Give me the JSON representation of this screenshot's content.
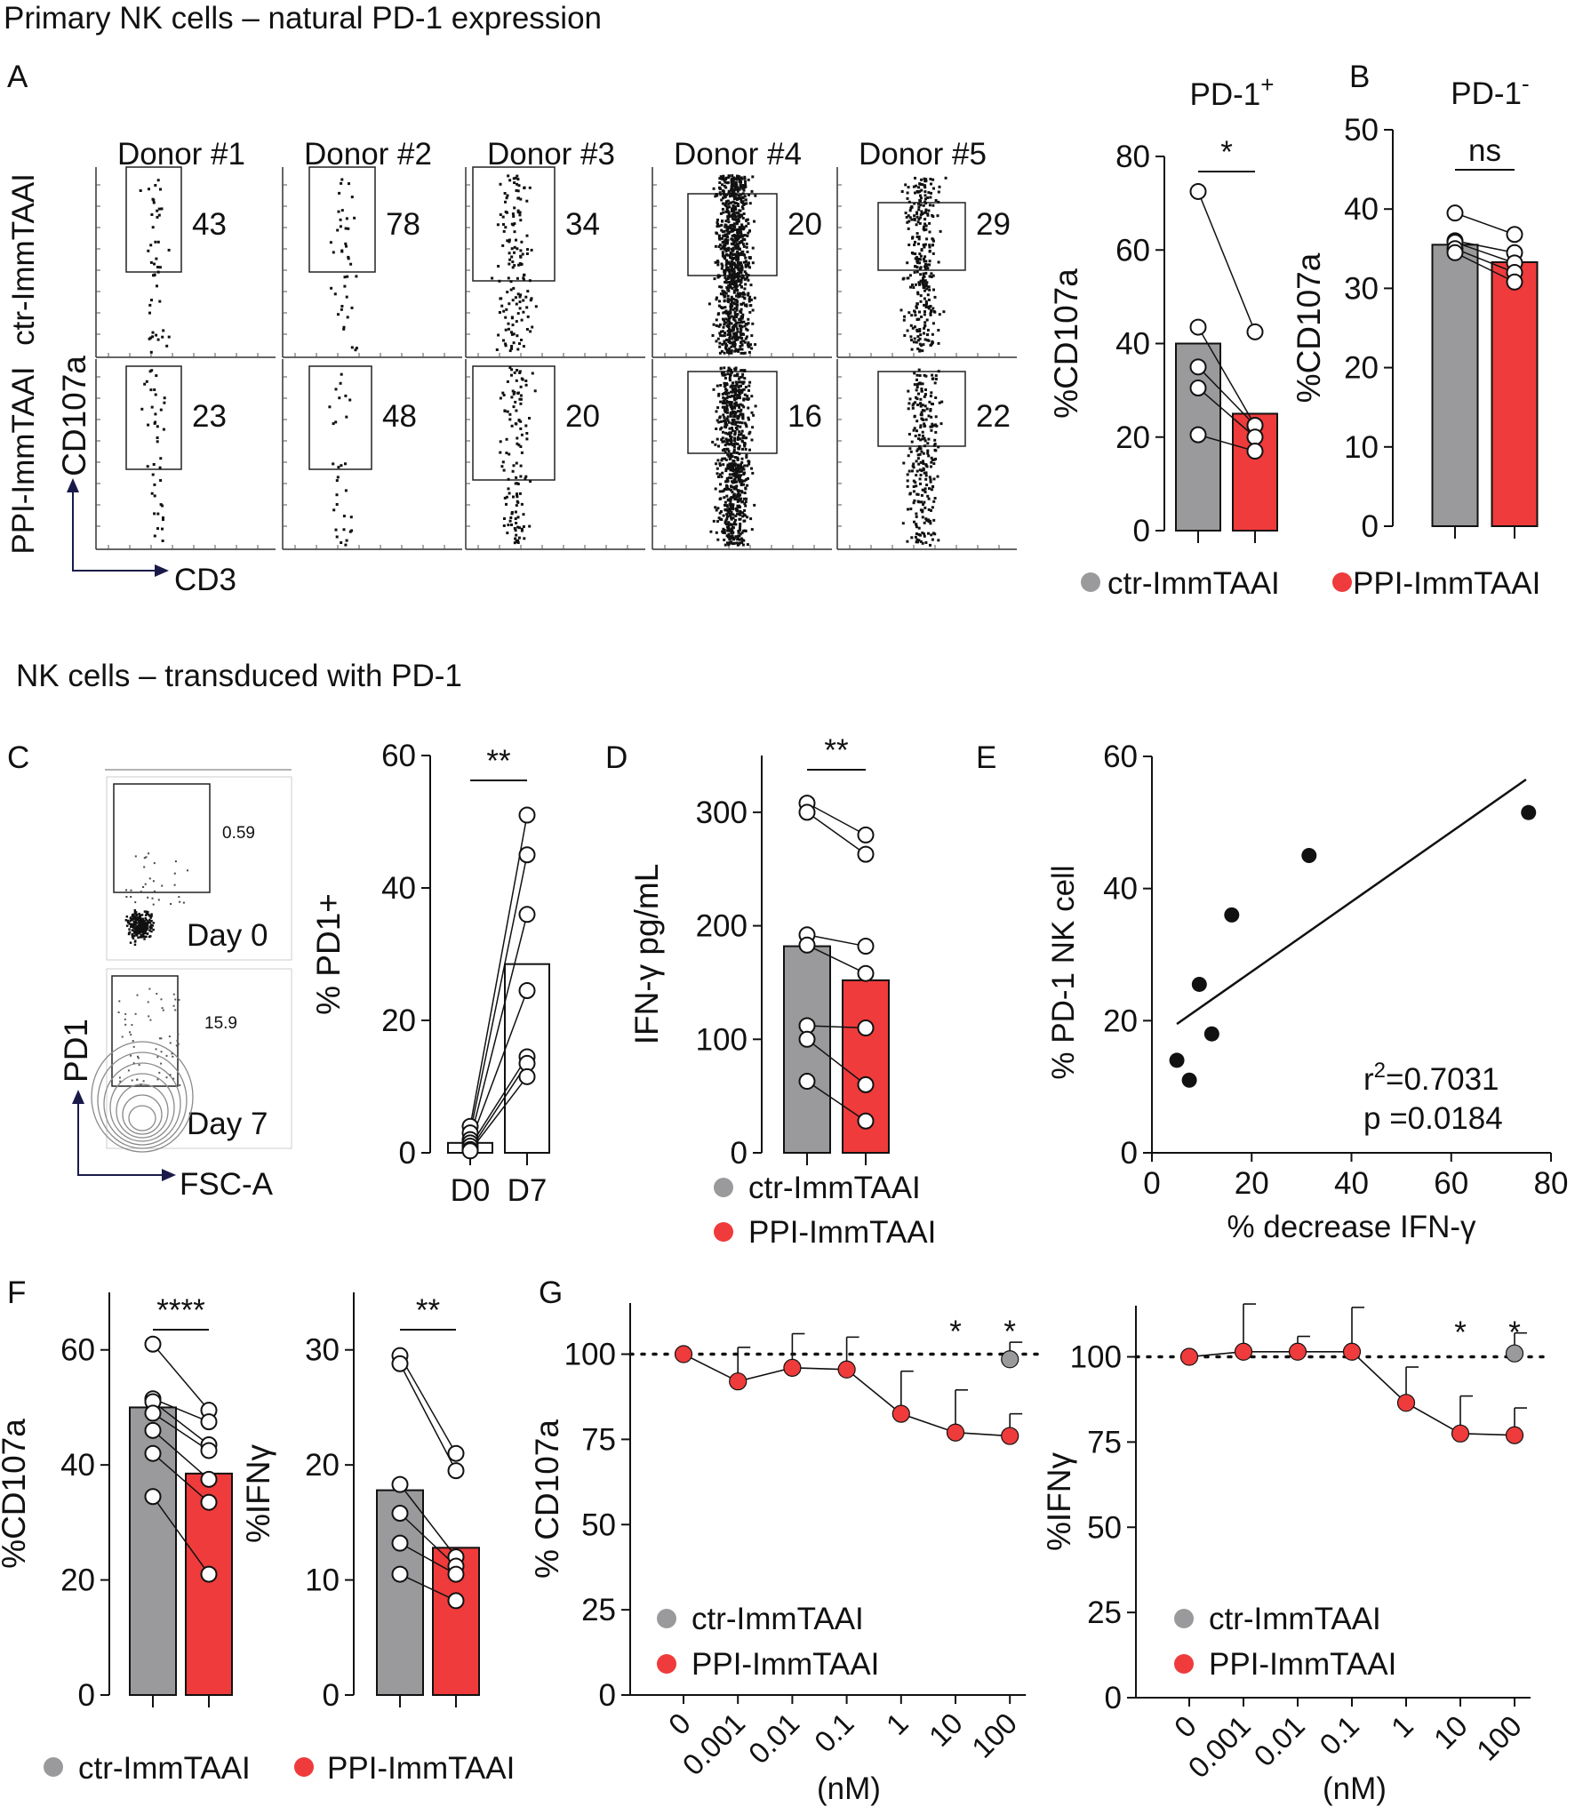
{
  "colors": {
    "ctr": "#9a9a9c",
    "ppi": "#ef3b3b",
    "ctr_bar": "#9a9a9c",
    "ppi_bar": "#ef3b3b",
    "axis": "#111111",
    "dot": "#111111",
    "contour": "#8a8a8a"
  },
  "sections": {
    "top_title": "Primary NK cells  – natural PD-1 expression",
    "mid_title": "NK cells  – transduced with PD-1"
  },
  "panel_letters": {
    "A": "A",
    "B": "B",
    "C": "C",
    "D": "D",
    "E": "E",
    "F": "F",
    "G": "G"
  },
  "panelA_flow": {
    "row_labels": [
      "ctr-ImmTAAI",
      "PPI-ImmTAAI"
    ],
    "y_axis": "CD107a",
    "x_axis": "CD3",
    "donors": [
      {
        "name": "Donor #1",
        "ctr": "43",
        "ppi": "23"
      },
      {
        "name": "Donor #2",
        "ctr": "78",
        "ppi": "48"
      },
      {
        "name": "Donor #3",
        "ctr": "34",
        "ppi": "20"
      },
      {
        "name": "Donor #4",
        "ctr": "20",
        "ppi": "16"
      },
      {
        "name": "Donor #5",
        "ctr": "29",
        "ppi": "22"
      }
    ]
  },
  "panelA_legend": {
    "ctr": "ctr-ImmTAAI",
    "ppi": "PPI-ImmTAAI"
  },
  "panelC_flow": {
    "y_axis": "PD1",
    "x_axis": "FSC-A",
    "plots": [
      {
        "day": "Day 0",
        "pct": "0.59"
      },
      {
        "day": "Day 7",
        "pct": "15.9"
      }
    ]
  },
  "panelD_legend": {
    "ctr": "ctr-ImmTAAI",
    "ppi": "PPI-ImmTAAI"
  },
  "panelF_legend": {
    "ctr": "ctr-ImmTAAI",
    "ppi": "PPI-ImmTAAI"
  },
  "chart_data": [
    {
      "id": "A",
      "type": "bar",
      "title": "PD-1",
      "title_sup": "+",
      "ylabel": "%CD107a",
      "ylim": [
        0,
        80
      ],
      "yticks": [
        "0",
        "20",
        "40",
        "60",
        "80"
      ],
      "categories": [
        "ctr-ImmTAAI",
        "PPI-ImmTAAI"
      ],
      "bars": [
        40,
        25
      ],
      "pairs": [
        [
          72.5,
          42.5
        ],
        [
          43.5,
          22.5
        ],
        [
          35,
          22.5
        ],
        [
          30.5,
          20
        ],
        [
          20.5,
          17
        ]
      ],
      "significance": "*"
    },
    {
      "id": "B",
      "type": "bar",
      "title": "PD-1",
      "title_sup": "-",
      "ylabel": "%CD107a",
      "ylim": [
        0,
        50
      ],
      "yticks": [
        "0",
        "10",
        "20",
        "30",
        "40",
        "50"
      ],
      "categories": [
        "ctr-ImmTAAI",
        "PPI-ImmTAAI"
      ],
      "bars": [
        35.5,
        33.3
      ],
      "pairs": [
        [
          39.5,
          36.8
        ],
        [
          36,
          34.5
        ],
        [
          35.8,
          33.2
        ],
        [
          35,
          32
        ],
        [
          34.5,
          30.8
        ]
      ],
      "significance": "ns"
    },
    {
      "id": "C",
      "type": "bar",
      "ylabel": "% PD1+",
      "ylim": [
        0,
        60
      ],
      "yticks": [
        "0",
        "20",
        "40",
        "60"
      ],
      "categories": [
        "D0",
        "D7"
      ],
      "bars": [
        1.5,
        28.5
      ],
      "pairs": [
        [
          4,
          51
        ],
        [
          3,
          45
        ],
        [
          2,
          36
        ],
        [
          1.5,
          24.5
        ],
        [
          1,
          14.5
        ],
        [
          0.5,
          13.5
        ],
        [
          0.3,
          11.5
        ]
      ],
      "significance": "**"
    },
    {
      "id": "D",
      "type": "bar",
      "ylabel": "IFN-γ pg/mL",
      "ylim": [
        0,
        350
      ],
      "yticks": [
        "0",
        "100",
        "200",
        "300"
      ],
      "categories": [
        "ctr-ImmTAAI",
        "PPI-ImmTAAI"
      ],
      "bars": [
        182,
        152
      ],
      "pairs": [
        [
          308,
          280
        ],
        [
          300,
          263
        ],
        [
          192,
          182
        ],
        [
          183,
          158
        ],
        [
          112,
          110
        ],
        [
          100,
          60
        ],
        [
          63,
          28
        ]
      ],
      "significance": "**"
    },
    {
      "id": "E",
      "type": "scatter",
      "xlabel": "% decrease IFN-γ",
      "ylabel": "% PD-1  NK cell",
      "xlim": [
        0,
        80
      ],
      "ylim": [
        0,
        60
      ],
      "xticks": [
        "0",
        "20",
        "40",
        "60",
        "80"
      ],
      "yticks": [
        "0",
        "20",
        "40",
        "60"
      ],
      "points": [
        [
          5,
          14
        ],
        [
          7.5,
          11
        ],
        [
          9.5,
          25.5
        ],
        [
          12,
          18
        ],
        [
          16,
          36
        ],
        [
          31.5,
          45
        ],
        [
          75.5,
          51.5
        ]
      ],
      "fit": [
        [
          5,
          19.5
        ],
        [
          75,
          56.5
        ]
      ],
      "r2_label": "r",
      "r2_sup": "2",
      "r2_value": "=0.7031",
      "p_label": "p =0.0184"
    },
    {
      "id": "F1",
      "type": "bar",
      "ylabel": "%CD107a",
      "ylim": [
        0,
        70
      ],
      "yticks": [
        "0",
        "20",
        "40",
        "60"
      ],
      "categories": [
        "ctr-ImmTAAI",
        "PPI-ImmTAAI"
      ],
      "bars": [
        50,
        38.5
      ],
      "pairs": [
        [
          61,
          49.5
        ],
        [
          51.5,
          47.5
        ],
        [
          51,
          43.5
        ],
        [
          49,
          42.5
        ],
        [
          46,
          37.5
        ],
        [
          42,
          33.5
        ],
        [
          34.5,
          21
        ]
      ],
      "significance": "****"
    },
    {
      "id": "F2",
      "type": "bar",
      "ylabel": "%IFNγ",
      "ylim": [
        0,
        35
      ],
      "yticks": [
        "0",
        "10",
        "20",
        "30"
      ],
      "categories": [
        "ctr-ImmTAAI",
        "PPI-ImmTAAI"
      ],
      "bars": [
        17.8,
        12.8
      ],
      "pairs": [
        [
          29.5,
          21
        ],
        [
          28.8,
          19.5
        ],
        [
          18.3,
          12
        ],
        [
          15.8,
          11.2
        ],
        [
          13.2,
          10.5
        ],
        [
          10.5,
          8.2
        ]
      ],
      "significance": "**"
    },
    {
      "id": "G1",
      "type": "line",
      "ylabel": "% CD107a",
      "xlabel": "(nM)",
      "categories": [
        "0",
        "0.001",
        "0.01",
        "0.1",
        "1",
        "10",
        "100"
      ],
      "ylim": [
        0,
        115
      ],
      "yticks": [
        "0",
        "25",
        "50",
        "75",
        "100"
      ],
      "series": [
        {
          "name": "PPI-ImmTAAI",
          "values": [
            100,
            92,
            96,
            95.5,
            82.5,
            77,
            76
          ],
          "errors": [
            0,
            10,
            10,
            9.5,
            12.5,
            12.5,
            6.5
          ]
        },
        {
          "name": "ctr-ImmTAAI",
          "points": [
            [
              6,
              98.5
            ]
          ],
          "errors": [
            5
          ]
        }
      ],
      "reference_line": 100,
      "significance": [
        {
          "index": 5,
          "label": "*"
        },
        {
          "index": 6,
          "label": "*"
        }
      ],
      "legend": [
        "ctr-ImmTAAI",
        "PPI-ImmTAAI"
      ]
    },
    {
      "id": "G2",
      "type": "line",
      "ylabel": "%IFNγ",
      "xlabel": "(nM)",
      "categories": [
        "0",
        "0.001",
        "0.01",
        "0.1",
        "1",
        "10",
        "100"
      ],
      "ylim": [
        0,
        115
      ],
      "yticks": [
        "0",
        "25",
        "50",
        "75",
        "100"
      ],
      "series": [
        {
          "name": "PPI-ImmTAAI",
          "values": [
            100,
            101.5,
            101.5,
            101.5,
            86.5,
            77.5,
            77
          ],
          "errors": [
            0,
            14,
            4.5,
            13,
            10.5,
            11,
            8
          ]
        },
        {
          "name": "ctr-ImmTAAI",
          "points": [
            [
              6,
              101
            ]
          ],
          "errors": [
            6
          ]
        }
      ],
      "reference_line": 100,
      "significance": [
        {
          "index": 5,
          "label": "*"
        },
        {
          "index": 6,
          "label": "*"
        }
      ],
      "legend": [
        "ctr-ImmTAAI",
        "PPI-ImmTAAI"
      ]
    }
  ]
}
